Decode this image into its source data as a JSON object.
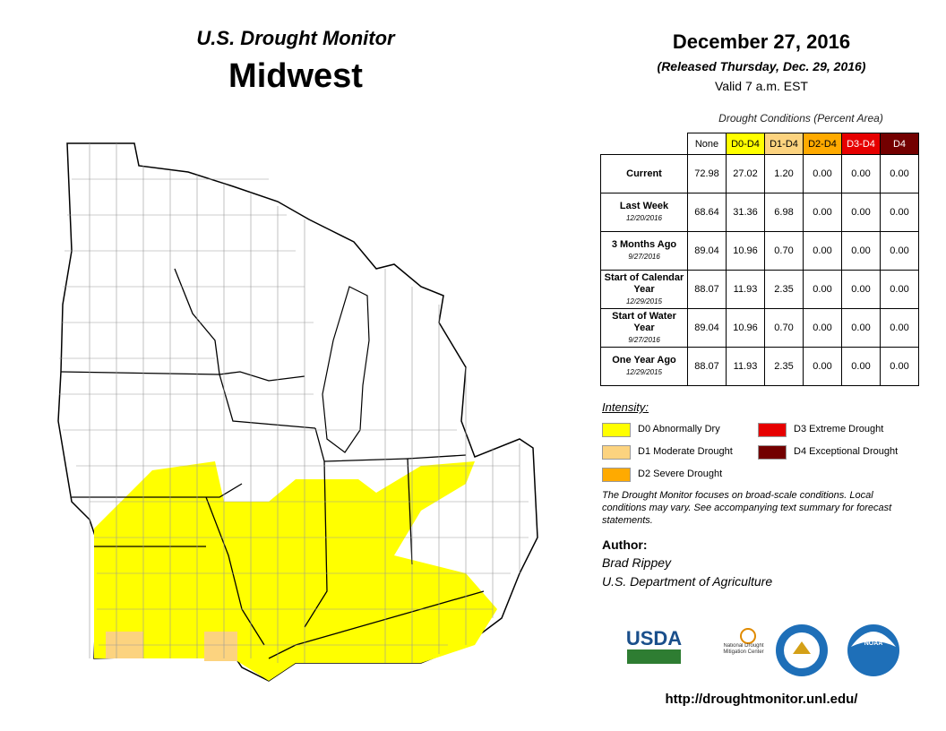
{
  "header": {
    "title": "U.S. Drought Monitor",
    "region": "Midwest",
    "date": "December 27, 2016",
    "released": "(Released Thursday, Dec. 29, 2016)",
    "valid": "Valid  7 a.m. EST"
  },
  "table": {
    "caption": "Drought Conditions (Percent Area)",
    "columns": [
      "None",
      "D0-D4",
      "D1-D4",
      "D2-D4",
      "D3-D4",
      "D4"
    ],
    "column_colors": [
      "#ffffff",
      "#ffff00",
      "#fcd37f",
      "#ffaa00",
      "#e60000",
      "#730000"
    ],
    "rows": [
      {
        "label": "Current",
        "values": [
          "72.98",
          "27.02",
          "1.20",
          "0.00",
          "0.00",
          "0.00"
        ]
      },
      {
        "label": "Last Week",
        "date": "12/20/2016",
        "values": [
          "68.64",
          "31.36",
          "6.98",
          "0.00",
          "0.00",
          "0.00"
        ]
      },
      {
        "label": "3 Months Ago",
        "date": "9/27/2016",
        "values": [
          "89.04",
          "10.96",
          "0.70",
          "0.00",
          "0.00",
          "0.00"
        ]
      },
      {
        "label": "Start of Calendar Year",
        "date": "12/29/2015",
        "values": [
          "88.07",
          "11.93",
          "2.35",
          "0.00",
          "0.00",
          "0.00"
        ]
      },
      {
        "label": "Start of Water Year",
        "date": "9/27/2016",
        "values": [
          "89.04",
          "10.96",
          "0.70",
          "0.00",
          "0.00",
          "0.00"
        ]
      },
      {
        "label": "One Year Ago",
        "date": "12/29/2015",
        "values": [
          "88.07",
          "11.93",
          "2.35",
          "0.00",
          "0.00",
          "0.00"
        ]
      }
    ]
  },
  "legend": {
    "title": "Intensity:",
    "items": [
      {
        "label": "D0 Abnormally Dry",
        "color": "#ffff00"
      },
      {
        "label": "D1 Moderate Drought",
        "color": "#fcd37f"
      },
      {
        "label": "D2 Severe Drought",
        "color": "#ffaa00"
      },
      {
        "label": "D3 Extreme Drought",
        "color": "#e60000"
      },
      {
        "label": "D4 Exceptional Drought",
        "color": "#730000"
      }
    ]
  },
  "note": "The Drought Monitor focuses on broad-scale conditions. Local conditions may vary. See accompanying text summary for forecast statements.",
  "author": {
    "heading": "Author:",
    "name": "Brad Rippey",
    "organization": "U.S. Department of Agriculture"
  },
  "logos": [
    "USDA",
    "National Drought Mitigation Center",
    "NOAA"
  ],
  "url": "http://droughtmonitor.unl.edu/"
}
